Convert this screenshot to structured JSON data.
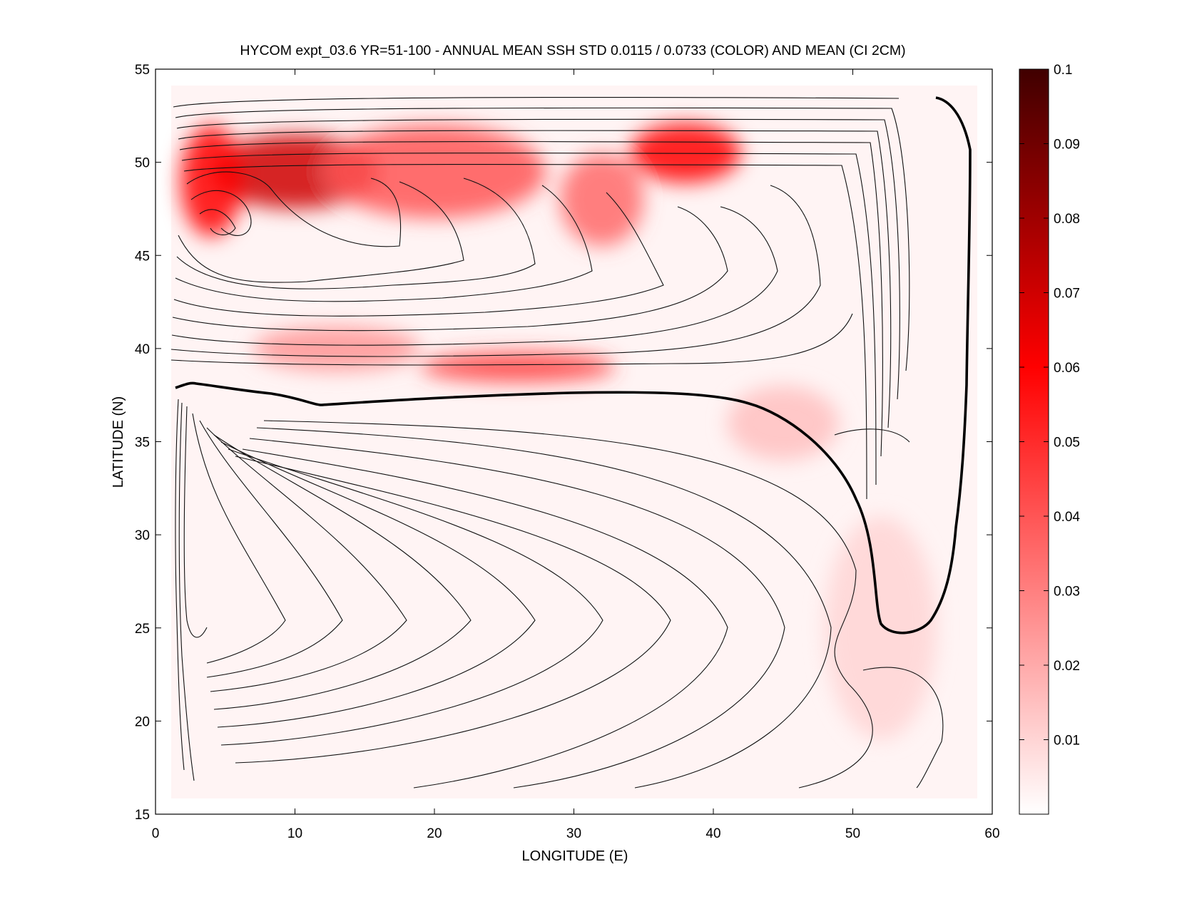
{
  "chart_data": {
    "type": "heatmap",
    "title": "HYCOM expt_03.6 YR=51-100 - ANNUAL MEAN SSH STD 0.0115 / 0.0733 (COLOR) AND MEAN (CI 2CM)",
    "xlabel": "LONGITUDE (E)",
    "ylabel": "LATITUDE (N)",
    "xlim": [
      0,
      60
    ],
    "ylim": [
      15,
      55
    ],
    "x_ticks": [
      "0",
      "10",
      "20",
      "30",
      "40",
      "50",
      "60"
    ],
    "y_ticks": [
      "15",
      "20",
      "25",
      "30",
      "35",
      "40",
      "45",
      "50",
      "55"
    ],
    "colorbar": {
      "range": [
        0,
        0.1
      ],
      "ticks": [
        "0.01",
        "0.02",
        "0.03",
        "0.04",
        "0.05",
        "0.06",
        "0.07",
        "0.08",
        "0.09",
        "0.1"
      ],
      "colors": [
        "#ffffff",
        "#ff0000",
        "#400000"
      ]
    },
    "ssh_std_stats": {
      "mean": 0.0115,
      "max": 0.0733
    },
    "contour_interval_cm": 2,
    "variability_maxima": [
      {
        "lon": 10,
        "lat": 49.5,
        "std": 0.07,
        "lon_radius": 6,
        "lat_radius": 2
      },
      {
        "lon": 4,
        "lat": 49,
        "std": 0.06,
        "lon_radius": 2.2,
        "lat_radius": 3
      },
      {
        "lon": 38,
        "lat": 50.5,
        "std": 0.06,
        "lon_radius": 4,
        "lat_radius": 1.6
      },
      {
        "lon": 20,
        "lat": 49.5,
        "std": 0.04,
        "lon_radius": 8,
        "lat_radius": 2.5
      },
      {
        "lon": 32,
        "lat": 48,
        "std": 0.035,
        "lon_radius": 3,
        "lat_radius": 2.5
      },
      {
        "lon": 26,
        "lat": 39,
        "std": 0.045,
        "lon_radius": 7,
        "lat_radius": 0.8
      },
      {
        "lon": 13,
        "lat": 40,
        "std": 0.025,
        "lon_radius": 6,
        "lat_radius": 1.2
      },
      {
        "lon": 45,
        "lat": 36,
        "std": 0.015,
        "lon_radius": 4,
        "lat_radius": 2
      },
      {
        "lon": 52,
        "lat": 25,
        "std": 0.01,
        "lon_radius": 4,
        "lat_radius": 6
      }
    ]
  }
}
